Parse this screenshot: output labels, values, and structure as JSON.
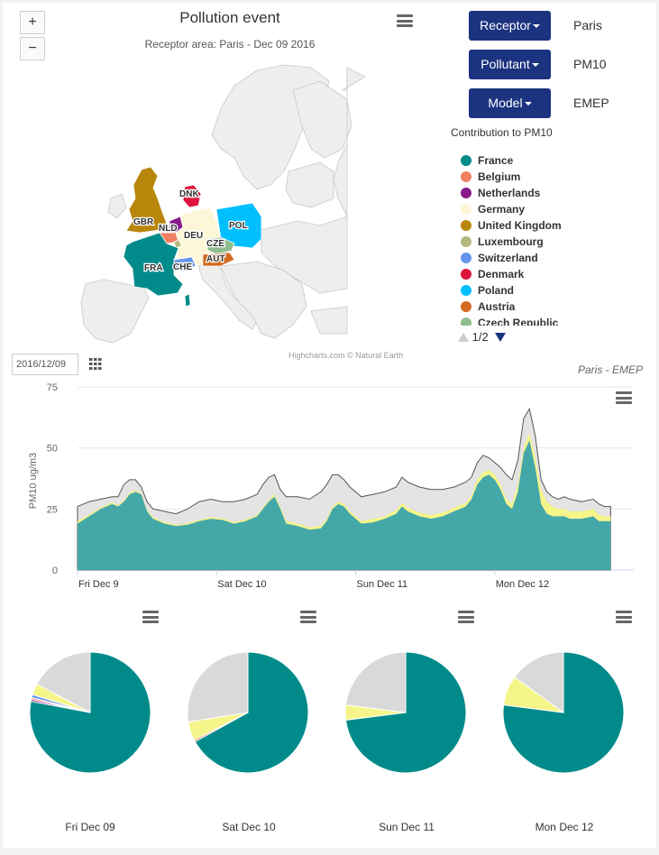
{
  "map": {
    "title": "Pollution event",
    "subtitle": "Receptor area: Paris - Dec 09 2016",
    "zoom_in": "+",
    "zoom_out": "−",
    "credits": "Highcharts.com © Natural Earth",
    "labels": [
      "GBR",
      "DNK",
      "NLD",
      "DEU",
      "POL",
      "CZE",
      "FRA",
      "CHE",
      "AUT"
    ]
  },
  "controls": {
    "receptor_label": "Receptor",
    "receptor_value": "Paris",
    "pollutant_label": "Pollutant",
    "pollutant_value": "PM10",
    "model_label": "Model",
    "model_value": "EMEP"
  },
  "legend": {
    "title": "Contribution to PM10",
    "pager": "1/2",
    "items": [
      {
        "name": "France",
        "color": "#008b8a"
      },
      {
        "name": "Belgium",
        "color": "#f08060"
      },
      {
        "name": "Netherlands",
        "color": "#8b1a8b"
      },
      {
        "name": "Germany",
        "color": "#fdf7d8"
      },
      {
        "name": "United Kingdom",
        "color": "#b8860b"
      },
      {
        "name": "Luxembourg",
        "color": "#b5b880"
      },
      {
        "name": "Switzerland",
        "color": "#6495ed"
      },
      {
        "name": "Denmark",
        "color": "#dc143c"
      },
      {
        "name": "Poland",
        "color": "#00bfff"
      },
      {
        "name": "Austria",
        "color": "#d2691e"
      },
      {
        "name": "Czech Republic",
        "color": "#8fbc8f"
      }
    ]
  },
  "timeseries": {
    "date_value": "2016/12/09",
    "subtitle": "Paris - EMEP",
    "ylabel": "PM10 ug/m3"
  },
  "chart_data": [
    {
      "type": "area",
      "ylabel": "PM10 ug/m3",
      "ylim": [
        0,
        75
      ],
      "yticks": [
        0,
        25,
        50,
        75
      ],
      "xtick_labels": [
        "Fri Dec 9",
        "Sat Dec 10",
        "Sun Dec 11",
        "Mon Dec 12"
      ],
      "xlim": [
        0,
        96
      ],
      "xtick_hours": [
        0,
        24,
        48,
        72
      ],
      "grid": true,
      "stacked": true,
      "series": [
        {
          "name": "France",
          "color": "#45a8a8",
          "points": [
            [
              0,
              19
            ],
            [
              2,
              22
            ],
            [
              4,
              25
            ],
            [
              6,
              27
            ],
            [
              7,
              26
            ],
            [
              8,
              28
            ],
            [
              9,
              31
            ],
            [
              10,
              32
            ],
            [
              11,
              31
            ],
            [
              12,
              24
            ],
            [
              13,
              21
            ],
            [
              15,
              19
            ],
            [
              17,
              18
            ],
            [
              19,
              18.5
            ],
            [
              21,
              20
            ],
            [
              23,
              21
            ],
            [
              25,
              20.5
            ],
            [
              27,
              19
            ],
            [
              29,
              20
            ],
            [
              31,
              22
            ],
            [
              32,
              25
            ],
            [
              33,
              28
            ],
            [
              34,
              30
            ],
            [
              35,
              25
            ],
            [
              36,
              19
            ],
            [
              38,
              18
            ],
            [
              40,
              16.5
            ],
            [
              42,
              17
            ],
            [
              43,
              20
            ],
            [
              44,
              25
            ],
            [
              45,
              27
            ],
            [
              46,
              26
            ],
            [
              47,
              23
            ],
            [
              49,
              19
            ],
            [
              51,
              19.5
            ],
            [
              53,
              21
            ],
            [
              55,
              23
            ],
            [
              56,
              26
            ],
            [
              57,
              24
            ],
            [
              59,
              22
            ],
            [
              61,
              21
            ],
            [
              63,
              22
            ],
            [
              65,
              24
            ],
            [
              67,
              26
            ],
            [
              68,
              29
            ],
            [
              69,
              35
            ],
            [
              70,
              38
            ],
            [
              71,
              39
            ],
            [
              72,
              37
            ],
            [
              73,
              33
            ],
            [
              74,
              27
            ],
            [
              75,
              25
            ],
            [
              76,
              32
            ],
            [
              77,
              48
            ],
            [
              78,
              53
            ],
            [
              79,
              42
            ],
            [
              80,
              27
            ],
            [
              81,
              23
            ],
            [
              82,
              22
            ],
            [
              83,
              22
            ],
            [
              84,
              22
            ],
            [
              85,
              21
            ],
            [
              87,
              21
            ],
            [
              89,
              22
            ],
            [
              90,
              20
            ],
            [
              91,
              20
            ],
            [
              92,
              20
            ]
          ]
        },
        {
          "name": "Other",
          "color": "#c5c5c5",
          "points": [
            [
              0,
              20
            ],
            [
              2,
              22.6
            ],
            [
              4,
              25.6
            ],
            [
              6,
              27.6
            ],
            [
              7,
              26.6
            ],
            [
              8,
              28.6
            ],
            [
              9,
              31.6
            ],
            [
              10,
              32.6
            ],
            [
              11,
              31.6
            ],
            [
              12,
              24.6
            ],
            [
              13,
              21.6
            ],
            [
              15,
              19.6
            ],
            [
              17,
              18.6
            ],
            [
              19,
              19.1
            ],
            [
              21,
              20.6
            ],
            [
              23,
              21.6
            ],
            [
              25,
              21.1
            ],
            [
              27,
              19.6
            ],
            [
              29,
              20.6
            ],
            [
              31,
              22.6
            ],
            [
              32,
              25.6
            ],
            [
              33,
              28.6
            ],
            [
              34,
              31
            ],
            [
              35,
              26
            ],
            [
              36,
              20
            ],
            [
              38,
              19
            ],
            [
              40,
              17.5
            ],
            [
              42,
              18
            ],
            [
              43,
              21
            ],
            [
              44,
              26
            ],
            [
              45,
              28
            ],
            [
              46,
              27
            ],
            [
              47,
              24
            ],
            [
              49,
              20
            ],
            [
              51,
              21
            ],
            [
              53,
              22
            ],
            [
              55,
              24.5
            ],
            [
              56,
              27.5
            ],
            [
              57,
              25.5
            ],
            [
              59,
              23.5
            ],
            [
              61,
              22.5
            ],
            [
              63,
              23.5
            ],
            [
              65,
              25.5
            ],
            [
              67,
              27.5
            ],
            [
              68,
              30.5
            ],
            [
              69,
              37
            ],
            [
              70,
              40
            ],
            [
              71,
              41
            ],
            [
              72,
              39
            ],
            [
              73,
              35
            ],
            [
              74,
              29
            ],
            [
              75,
              27
            ],
            [
              76,
              35
            ],
            [
              77,
              50
            ],
            [
              78,
              56
            ],
            [
              79,
              46
            ],
            [
              80,
              33
            ],
            [
              81,
              28
            ],
            [
              82,
              26
            ],
            [
              83,
              25
            ],
            [
              84,
              25
            ],
            [
              85,
              24
            ],
            [
              87,
              24
            ],
            [
              89,
              25
            ],
            [
              90,
              22.5
            ],
            [
              91,
              22
            ],
            [
              92,
              22
            ]
          ]
        },
        {
          "name": "Total",
          "color": "#e4e4e4",
          "points": [
            [
              0,
              26
            ],
            [
              2,
              28
            ],
            [
              4,
              29
            ],
            [
              6,
              30
            ],
            [
              7,
              30
            ],
            [
              8,
              35
            ],
            [
              9,
              37
            ],
            [
              10,
              37
            ],
            [
              11,
              34
            ],
            [
              12,
              28
            ],
            [
              13,
              25
            ],
            [
              15,
              24
            ],
            [
              17,
              23
            ],
            [
              19,
              25
            ],
            [
              21,
              28
            ],
            [
              23,
              29
            ],
            [
              25,
              28
            ],
            [
              27,
              28
            ],
            [
              29,
              29
            ],
            [
              31,
              31
            ],
            [
              32,
              35
            ],
            [
              33,
              38
            ],
            [
              34,
              39
            ],
            [
              35,
              33
            ],
            [
              36,
              30
            ],
            [
              38,
              30
            ],
            [
              40,
              29
            ],
            [
              42,
              32
            ],
            [
              43,
              35
            ],
            [
              44,
              39
            ],
            [
              45,
              39
            ],
            [
              46,
              37
            ],
            [
              47,
              34
            ],
            [
              49,
              30
            ],
            [
              51,
              31
            ],
            [
              53,
              32
            ],
            [
              55,
              34
            ],
            [
              56,
              38
            ],
            [
              57,
              36
            ],
            [
              59,
              34
            ],
            [
              61,
              33
            ],
            [
              63,
              33
            ],
            [
              65,
              34
            ],
            [
              67,
              36
            ],
            [
              68,
              38
            ],
            [
              69,
              44
            ],
            [
              70,
              47
            ],
            [
              71,
              46
            ],
            [
              72,
              44
            ],
            [
              73,
              42
            ],
            [
              74,
              39
            ],
            [
              75,
              37
            ],
            [
              76,
              45
            ],
            [
              77,
              62
            ],
            [
              78,
              66
            ],
            [
              79,
              55
            ],
            [
              80,
              37
            ],
            [
              81,
              32
            ],
            [
              82,
              30
            ],
            [
              83,
              29
            ],
            [
              84,
              30
            ],
            [
              85,
              29
            ],
            [
              87,
              28
            ],
            [
              89,
              29
            ],
            [
              90,
              27
            ],
            [
              91,
              26
            ],
            [
              92,
              26
            ]
          ]
        }
      ]
    },
    {
      "type": "pie",
      "label": "Fri Dec 09",
      "slices": [
        {
          "name": "France",
          "value": 78,
          "color": "#008b8a"
        },
        {
          "name": "Netherlands",
          "value": 0.5,
          "color": "#8b1a8b"
        },
        {
          "name": "Belgium",
          "value": 0.5,
          "color": "#f08060"
        },
        {
          "name": "Switzerland",
          "value": 0.8,
          "color": "#6495ed"
        },
        {
          "name": "Germany",
          "value": 3,
          "color": "#f5f58a"
        },
        {
          "name": "Other",
          "value": 17.2,
          "color": "#d9d9d9"
        }
      ]
    },
    {
      "type": "pie",
      "label": "Sat Dec 10",
      "slices": [
        {
          "name": "France",
          "value": 67,
          "color": "#008b8a"
        },
        {
          "name": "Belgium",
          "value": 0.5,
          "color": "#f08060"
        },
        {
          "name": "Germany",
          "value": 5,
          "color": "#f5f58a"
        },
        {
          "name": "Other",
          "value": 27.5,
          "color": "#d9d9d9"
        }
      ]
    },
    {
      "type": "pie",
      "label": "Sun Dec 11",
      "slices": [
        {
          "name": "France",
          "value": 73,
          "color": "#008b8a"
        },
        {
          "name": "Germany",
          "value": 4,
          "color": "#f5f58a"
        },
        {
          "name": "Other",
          "value": 23,
          "color": "#d9d9d9"
        }
      ]
    },
    {
      "type": "pie",
      "label": "Mon Dec 12",
      "slices": [
        {
          "name": "France",
          "value": 77,
          "color": "#008b8a"
        },
        {
          "name": "Germany",
          "value": 8,
          "color": "#f5f58a"
        },
        {
          "name": "Other",
          "value": 15,
          "color": "#d9d9d9"
        }
      ]
    }
  ]
}
